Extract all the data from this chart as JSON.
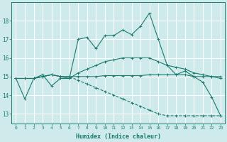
{
  "xlabel": "Humidex (Indice chaleur)",
  "xlim": [
    -0.5,
    23.5
  ],
  "ylim": [
    12.5,
    19.0
  ],
  "yticks": [
    13,
    14,
    15,
    16,
    17,
    18
  ],
  "xticks": [
    0,
    1,
    2,
    3,
    4,
    5,
    6,
    7,
    8,
    9,
    10,
    11,
    12,
    13,
    14,
    15,
    16,
    17,
    18,
    19,
    20,
    21,
    22,
    23
  ],
  "background_color": "#ceeaea",
  "grid_color": "#ffffff",
  "line_color": "#1a7a6e",
  "lines": [
    {
      "x": [
        0,
        1,
        2,
        3,
        4,
        5,
        6,
        7,
        8,
        9,
        10,
        11,
        12,
        13,
        14,
        15,
        16,
        17,
        18,
        19,
        20,
        21,
        22,
        23
      ],
      "y": [
        14.9,
        13.8,
        14.9,
        15.1,
        14.5,
        14.9,
        14.9,
        17.0,
        17.1,
        16.5,
        17.2,
        17.2,
        17.5,
        17.25,
        17.7,
        18.4,
        17.0,
        15.6,
        15.1,
        15.3,
        15.0,
        14.7,
        13.9,
        12.9
      ],
      "style": "-",
      "marker": "+"
    },
    {
      "x": [
        0,
        1,
        2,
        3,
        4,
        5,
        6,
        7,
        8,
        9,
        10,
        11,
        12,
        13,
        14,
        15,
        16,
        17,
        18,
        19,
        20,
        21,
        22,
        23
      ],
      "y": [
        14.9,
        14.9,
        14.9,
        15.0,
        15.1,
        15.0,
        15.0,
        15.0,
        15.0,
        15.0,
        15.05,
        15.05,
        15.05,
        15.05,
        15.05,
        15.1,
        15.1,
        15.1,
        15.1,
        15.1,
        15.0,
        15.0,
        15.0,
        15.0
      ],
      "style": "-",
      "marker": "+"
    },
    {
      "x": [
        0,
        1,
        2,
        3,
        4,
        5,
        6,
        7,
        8,
        9,
        10,
        11,
        12,
        13,
        14,
        15,
        16,
        17,
        18,
        19,
        20,
        21,
        22,
        23
      ],
      "y": [
        14.9,
        14.9,
        14.9,
        15.0,
        15.1,
        15.0,
        14.9,
        15.2,
        15.4,
        15.6,
        15.8,
        15.9,
        16.0,
        16.0,
        16.0,
        16.0,
        15.8,
        15.6,
        15.5,
        15.4,
        15.2,
        15.1,
        15.0,
        14.9
      ],
      "style": "-",
      "marker": "+"
    },
    {
      "x": [
        0,
        1,
        2,
        3,
        4,
        5,
        6,
        7,
        8,
        9,
        10,
        11,
        12,
        13,
        14,
        15,
        16,
        17,
        18,
        19,
        20,
        21,
        22,
        23
      ],
      "y": [
        14.9,
        14.9,
        14.9,
        15.0,
        15.1,
        15.0,
        15.0,
        14.8,
        14.6,
        14.4,
        14.2,
        14.0,
        13.8,
        13.6,
        13.4,
        13.2,
        13.0,
        12.9,
        12.9,
        12.9,
        12.9,
        12.9,
        12.9,
        12.9
      ],
      "style": "--",
      "marker": "+"
    }
  ]
}
